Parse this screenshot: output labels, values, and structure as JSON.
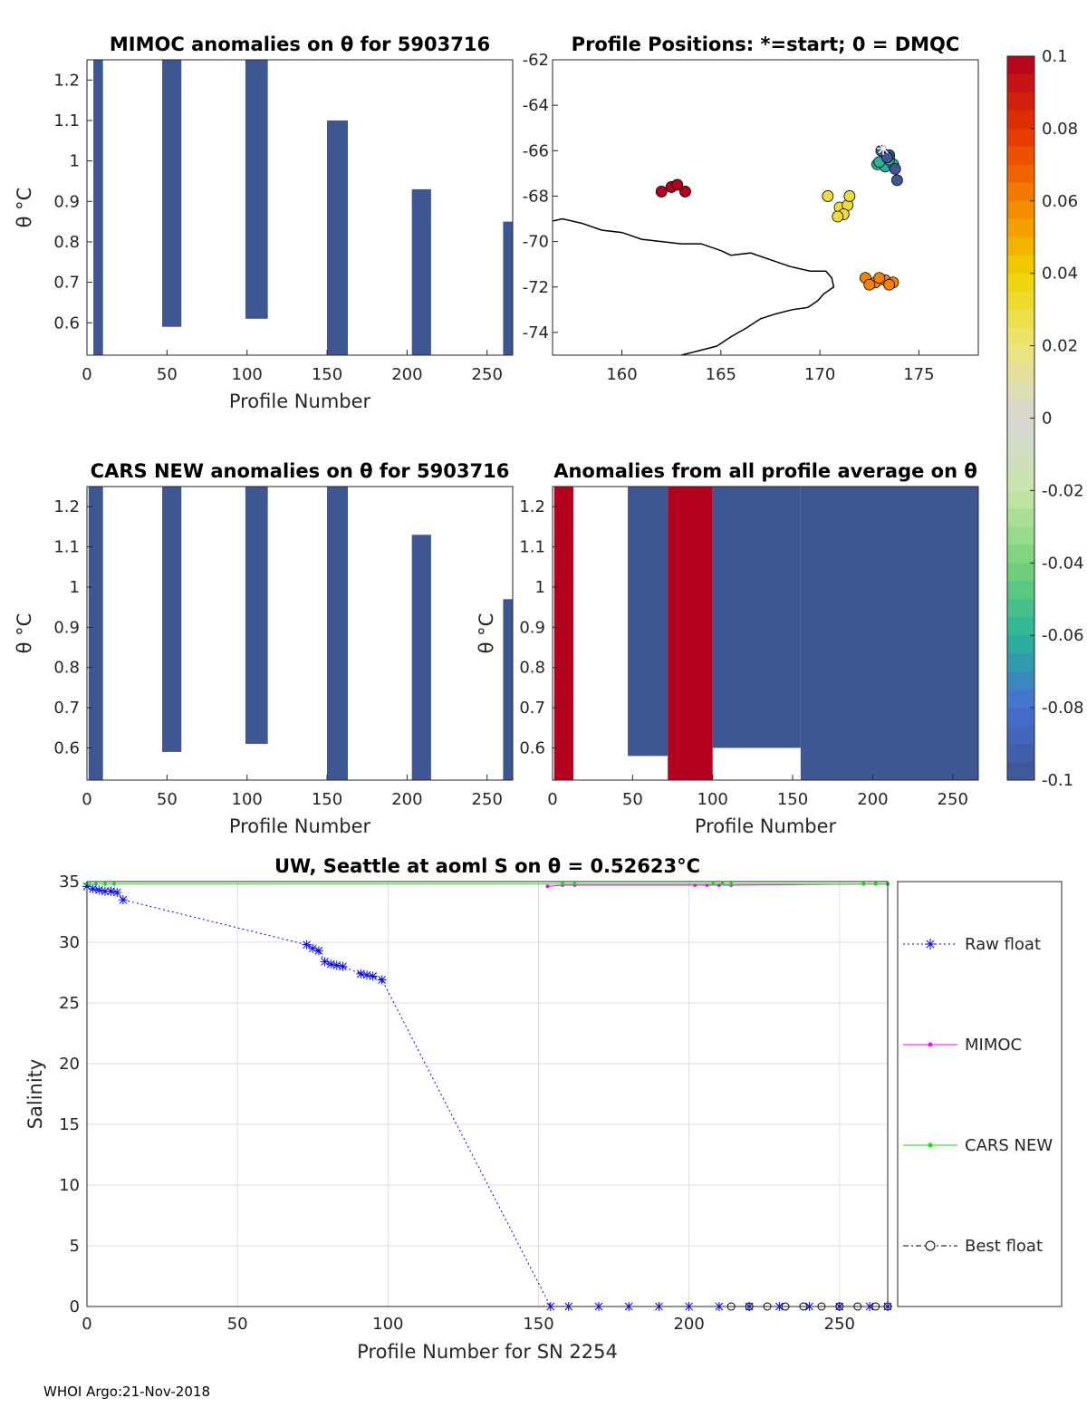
{
  "colors": {
    "blue_fill": "#3e5793",
    "red_fill": "#b3001f",
    "raw": "#0000ff",
    "mimoc": "#ff00ff",
    "cars": "#00ee00",
    "best": "#000000"
  },
  "footer": "WHOI Argo:21-Nov-2018",
  "colorbar": {
    "ticks": [
      "0.1",
      "0.08",
      "0.06",
      "0.04",
      "0.02",
      "0",
      "-0.02",
      "-0.04",
      "-0.06",
      "-0.08",
      "-0.1"
    ],
    "range": [
      -0.1,
      0.1
    ]
  },
  "chart_data": [
    {
      "id": "mimoc",
      "type": "heatmap",
      "title": "MIMOC anomalies on θ  for 5903716",
      "xlabel": "Profile Number",
      "ylabel": "θ °C",
      "xlim": [
        0,
        266
      ],
      "ylim": [
        0.52,
        1.25
      ],
      "xticks": [
        "0",
        "50",
        "100",
        "150",
        "200",
        "250"
      ],
      "yticks": [
        "0.6",
        "0.7",
        "0.8",
        "0.9",
        "1",
        "1.1",
        "1.2"
      ],
      "regions": [
        {
          "x": [
            4,
            10
          ],
          "y": [
            0.52,
            1.25
          ],
          "v": -0.1
        },
        {
          "x": [
            47,
            59
          ],
          "y": [
            0.59,
            1.25
          ],
          "v": -0.1
        },
        {
          "x": [
            99,
            113
          ],
          "y": [
            0.61,
            1.25
          ],
          "v": -0.1
        },
        {
          "x": [
            150,
            163
          ],
          "y": [
            0.52,
            1.1
          ],
          "v": -0.1
        },
        {
          "x": [
            203,
            215
          ],
          "y": [
            0.52,
            0.93
          ],
          "v": -0.1
        },
        {
          "x": [
            260,
            266
          ],
          "y": [
            0.52,
            0.85
          ],
          "v": -0.1
        }
      ]
    },
    {
      "id": "map",
      "type": "scatter",
      "title": "Profile Positions: *=start; 0 = DMQC",
      "xlim": [
        156.5,
        178
      ],
      "ylim": [
        -75,
        -62
      ],
      "xticks": [
        "160",
        "165",
        "170",
        "175"
      ],
      "yticks": [
        "-62",
        "-64",
        "-66",
        "-68",
        "-70",
        "-72",
        "-74"
      ],
      "start": {
        "lon": 173.2,
        "lat": -65.9
      },
      "clusters": [
        {
          "v": 0.1,
          "points": [
            [
              162.0,
              -67.8
            ],
            [
              162.5,
              -67.6
            ],
            [
              163.2,
              -67.8
            ],
            [
              162.8,
              -67.5
            ]
          ]
        },
        {
          "v": 0.06,
          "points": [
            [
              172.3,
              -71.6
            ],
            [
              172.8,
              -71.8
            ],
            [
              173.3,
              -71.7
            ],
            [
              173.7,
              -71.8
            ],
            [
              172.5,
              -71.9
            ],
            [
              173.0,
              -71.6
            ],
            [
              173.5,
              -71.9
            ]
          ]
        },
        {
          "v": 0.03,
          "points": [
            [
              170.4,
              -68.0
            ],
            [
              171.0,
              -68.5
            ],
            [
              171.4,
              -68.4
            ],
            [
              171.2,
              -68.8
            ],
            [
              170.9,
              -68.9
            ],
            [
              171.5,
              -68.0
            ]
          ]
        },
        {
          "v": -0.06,
          "points": [
            [
              172.9,
              -66.6
            ],
            [
              173.3,
              -66.7
            ],
            [
              173.7,
              -66.6
            ],
            [
              173.5,
              -66.4
            ],
            [
              173.0,
              -66.5
            ]
          ]
        },
        {
          "v": -0.1,
          "points": [
            [
              173.1,
              -66.0
            ],
            [
              173.5,
              -66.2
            ],
            [
              173.8,
              -66.8
            ],
            [
              173.9,
              -67.3
            ],
            [
              173.4,
              -66.3
            ]
          ]
        }
      ],
      "coast": [
        [
          156.5,
          -69.1
        ],
        [
          157.0,
          -69.0
        ],
        [
          158.0,
          -69.2
        ],
        [
          159.0,
          -69.5
        ],
        [
          160.0,
          -69.6
        ],
        [
          161.0,
          -69.9
        ],
        [
          162.0,
          -70.0
        ],
        [
          163.0,
          -70.1
        ],
        [
          164.0,
          -70.1
        ],
        [
          165.0,
          -70.4
        ],
        [
          165.5,
          -70.6
        ],
        [
          166.5,
          -70.5
        ],
        [
          167.5,
          -70.8
        ],
        [
          168.5,
          -71.1
        ],
        [
          169.5,
          -71.3
        ],
        [
          170.3,
          -71.3
        ],
        [
          170.6,
          -71.6
        ],
        [
          170.7,
          -72.0
        ],
        [
          170.2,
          -72.3
        ],
        [
          169.9,
          -72.6
        ],
        [
          169.4,
          -72.9
        ],
        [
          168.6,
          -73.0
        ],
        [
          167.7,
          -73.2
        ],
        [
          167.0,
          -73.4
        ],
        [
          166.3,
          -73.8
        ],
        [
          165.5,
          -74.2
        ],
        [
          164.8,
          -74.6
        ],
        [
          163.0,
          -75.0
        ]
      ]
    },
    {
      "id": "cars",
      "type": "heatmap",
      "title": "CARS NEW anomalies on θ for 5903716",
      "xlabel": "Profile Number",
      "ylabel": "θ °C",
      "xlim": [
        0,
        266
      ],
      "ylim": [
        0.52,
        1.25
      ],
      "xticks": [
        "0",
        "50",
        "100",
        "150",
        "200",
        "250"
      ],
      "yticks": [
        "0.6",
        "0.7",
        "0.8",
        "0.9",
        "1",
        "1.1",
        "1.2"
      ],
      "regions": [
        {
          "x": [
            1,
            10
          ],
          "y": [
            0.52,
            1.25
          ],
          "v": -0.1
        },
        {
          "x": [
            47,
            59
          ],
          "y": [
            0.59,
            1.25
          ],
          "v": -0.1
        },
        {
          "x": [
            99,
            113
          ],
          "y": [
            0.61,
            1.25
          ],
          "v": -0.1
        },
        {
          "x": [
            150,
            163
          ],
          "y": [
            0.52,
            1.25
          ],
          "v": -0.1
        },
        {
          "x": [
            203,
            215
          ],
          "y": [
            0.52,
            1.13
          ],
          "v": -0.1
        },
        {
          "x": [
            260,
            266
          ],
          "y": [
            0.52,
            0.97
          ],
          "v": -0.1
        }
      ]
    },
    {
      "id": "allavg",
      "type": "heatmap",
      "title": "Anomalies from all profile average on θ",
      "xlabel": "Profile Number",
      "ylabel": "θ °C",
      "xlim": [
        0,
        266
      ],
      "ylim": [
        0.52,
        1.25
      ],
      "xticks": [
        "0",
        "50",
        "100",
        "150",
        "200",
        "250"
      ],
      "yticks": [
        "0.6",
        "0.7",
        "0.8",
        "0.9",
        "1",
        "1.1",
        "1.2"
      ],
      "regions": [
        {
          "x": [
            1,
            13
          ],
          "y": [
            0.52,
            1.25
          ],
          "v": 0.1
        },
        {
          "x": [
            47,
            72
          ],
          "y": [
            0.58,
            1.25
          ],
          "v": -0.1
        },
        {
          "x": [
            72,
            100
          ],
          "y": [
            0.52,
            1.25
          ],
          "v": 0.1
        },
        {
          "x": [
            100,
            155
          ],
          "y": [
            0.6,
            1.25
          ],
          "v": -0.1
        },
        {
          "x": [
            155,
            266
          ],
          "y": [
            0.52,
            1.25
          ],
          "v": -0.1
        }
      ]
    },
    {
      "id": "salinity",
      "type": "line",
      "title": "UW, Seattle at aoml S on θ = 0.52623°C",
      "xlabel": "Profile Number for SN 2254",
      "ylabel": "Salinity",
      "xlim": [
        0,
        266
      ],
      "ylim": [
        0,
        35
      ],
      "xticks": [
        "0",
        "50",
        "100",
        "150",
        "200",
        "250"
      ],
      "yticks": [
        "0",
        "5",
        "10",
        "15",
        "20",
        "25",
        "30",
        "35"
      ],
      "series": [
        {
          "name": "Raw float",
          "x": [
            0,
            2,
            4,
            6,
            8,
            10,
            12,
            73,
            75,
            77,
            79,
            81,
            83,
            85,
            91,
            93,
            95,
            98,
            154,
            160,
            170,
            180,
            190,
            200,
            210,
            220,
            230,
            240,
            250,
            260,
            266
          ],
          "y": [
            34.6,
            34.4,
            34.3,
            34.2,
            34.2,
            34.1,
            33.5,
            29.8,
            29.5,
            29.3,
            28.4,
            28.2,
            28.1,
            28.0,
            27.4,
            27.3,
            27.2,
            26.9,
            0,
            0,
            0,
            0,
            0,
            0,
            0,
            0,
            0,
            0,
            0,
            0,
            0
          ]
        },
        {
          "name": "MIMOC",
          "x": [
            153,
            158,
            162,
            202,
            206,
            210,
            214,
            258,
            262,
            266
          ],
          "y": [
            34.6,
            34.7,
            34.7,
            34.7,
            34.7,
            34.7,
            34.7,
            34.8,
            34.8,
            34.8
          ]
        },
        {
          "name": "CARS NEW",
          "x": [
            0,
            3,
            6,
            9,
            158,
            162,
            208,
            211,
            214,
            258,
            262,
            266
          ],
          "y": [
            34.8,
            34.8,
            34.8,
            34.8,
            34.8,
            34.8,
            34.8,
            34.8,
            34.8,
            34.8,
            34.8,
            34.8
          ]
        },
        {
          "name": "Best float",
          "x": [
            214,
            220,
            226,
            232,
            238,
            244,
            250,
            256,
            262,
            266
          ],
          "y": [
            0,
            0,
            0,
            0,
            0,
            0,
            0,
            0,
            0,
            0
          ]
        }
      ]
    }
  ]
}
